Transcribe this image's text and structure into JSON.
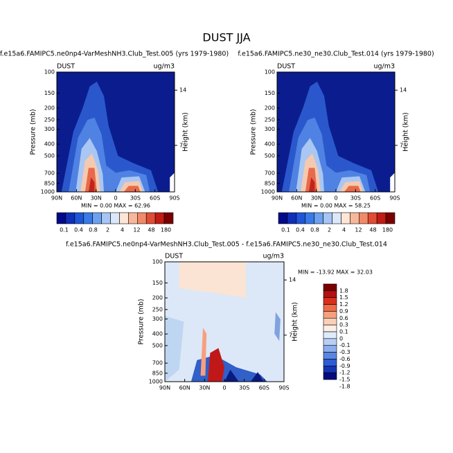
{
  "title": "DUST JJA",
  "chart_data": [
    {
      "type": "contour",
      "subtitle": "f.e15a6.FAMIPC5.ne0np4-VarMeshNH3.Club_Test.005 (yrs 1979-1980)",
      "label_left": "DUST",
      "label_right": "ug/m3",
      "ylabel": "Pressure (mb)",
      "y2label": "Height (km)",
      "xlim": [
        90,
        -90
      ],
      "xticks": [
        {
          "value": 90,
          "label": "90N"
        },
        {
          "value": 60,
          "label": "60N"
        },
        {
          "value": 30,
          "label": "30N"
        },
        0,
        {
          "value": -30,
          "label": "30S"
        },
        {
          "value": -60,
          "label": "60S"
        },
        {
          "value": -90,
          "label": "90S"
        }
      ],
      "ylim": [
        1000,
        100
      ],
      "ylog": true,
      "yticks": [
        100,
        150,
        200,
        250,
        300,
        400,
        500,
        700,
        850,
        1000
      ],
      "y2lim": [
        1.1,
        16.3
      ],
      "y2ticks": [
        14,
        7
      ],
      "stats": "MIN =  0.00  MAX = 62.96",
      "colorbar": {
        "levels": [
          0.1,
          0.4,
          0.8,
          2,
          4,
          12,
          48,
          180
        ],
        "colors": [
          "#020a8a",
          "#0f2fb8",
          "#1f55d6",
          "#3a7ae8",
          "#6ea0f0",
          "#a6c5f5",
          "#dbe8fb",
          "#fde6d6",
          "#f7b79c",
          "#f08a68",
          "#e04c34",
          "#c01c14",
          "#7a0000"
        ]
      }
    },
    {
      "type": "contour",
      "subtitle": "f.e15a6.FAMIPC5.ne30_ne30.Club_Test.014 (yrs 1979-1980)",
      "label_left": "DUST",
      "label_right": "ug/m3",
      "ylabel": "Pressure (mb)",
      "y2label": "Height (km)",
      "xlim": [
        90,
        -90
      ],
      "xticks": [
        {
          "value": 90,
          "label": "90N"
        },
        {
          "value": 60,
          "label": "60N"
        },
        {
          "value": 30,
          "label": "30N"
        },
        0,
        {
          "value": -30,
          "label": "30S"
        },
        {
          "value": -60,
          "label": "60S"
        },
        {
          "value": -90,
          "label": "90S"
        }
      ],
      "ylim": [
        1000,
        100
      ],
      "ylog": true,
      "yticks": [
        100,
        150,
        200,
        250,
        300,
        400,
        500,
        700,
        850,
        1000
      ],
      "y2lim": [
        1.1,
        16.3
      ],
      "y2ticks": [
        14,
        7
      ],
      "stats": "MIN =  0.00  MAX = 58.25",
      "colorbar": {
        "levels": [
          0.1,
          0.4,
          0.8,
          2,
          4,
          12,
          48,
          180
        ],
        "colors": [
          "#020a8a",
          "#0f2fb8",
          "#1f55d6",
          "#3a7ae8",
          "#6ea0f0",
          "#a6c5f5",
          "#dbe8fb",
          "#fde6d6",
          "#f7b79c",
          "#f08a68",
          "#e04c34",
          "#c01c14",
          "#7a0000"
        ]
      }
    },
    {
      "type": "contour",
      "subtitle": "f.e15a6.FAMIPC5.ne0np4-VarMeshNH3.Club_Test.005 - f.e15a6.FAMIPC5.ne30_ne30.Club_Test.014",
      "label_left": "DUST",
      "label_right": "ug/m3",
      "ylabel": "Pressure (mb)",
      "y2label": "Height (km)",
      "xlim": [
        90,
        -90
      ],
      "xticks": [
        {
          "value": 90,
          "label": "90N"
        },
        {
          "value": 60,
          "label": "60N"
        },
        {
          "value": 30,
          "label": "30N"
        },
        0,
        {
          "value": -30,
          "label": "30S"
        },
        {
          "value": -60,
          "label": "60S"
        },
        {
          "value": -90,
          "label": "90S"
        }
      ],
      "ylim": [
        1000,
        100
      ],
      "ylog": true,
      "yticks": [
        100,
        150,
        200,
        250,
        300,
        400,
        500,
        700,
        850,
        1000
      ],
      "y2lim": [
        1.1,
        16.3
      ],
      "y2ticks": [
        14,
        7
      ],
      "stats": "MIN = -13.92  MAX = 32.03",
      "colorbar": {
        "levels": [
          1.8,
          1.5,
          1.2,
          0.9,
          0.6,
          0.3,
          0.1,
          0,
          -0.1,
          -0.3,
          -0.6,
          -0.9,
          -1.2,
          -1.5,
          -1.8
        ],
        "colors": [
          "#7a0000",
          "#b51010",
          "#d8301c",
          "#ee6a48",
          "#f7a07e",
          "#fbd0b8",
          "#fdeee4",
          "#dfeafb",
          "#b8cff5",
          "#8aadee",
          "#5a86e2",
          "#2d5cd4",
          "#1434b0",
          "#050a80"
        ]
      }
    }
  ]
}
